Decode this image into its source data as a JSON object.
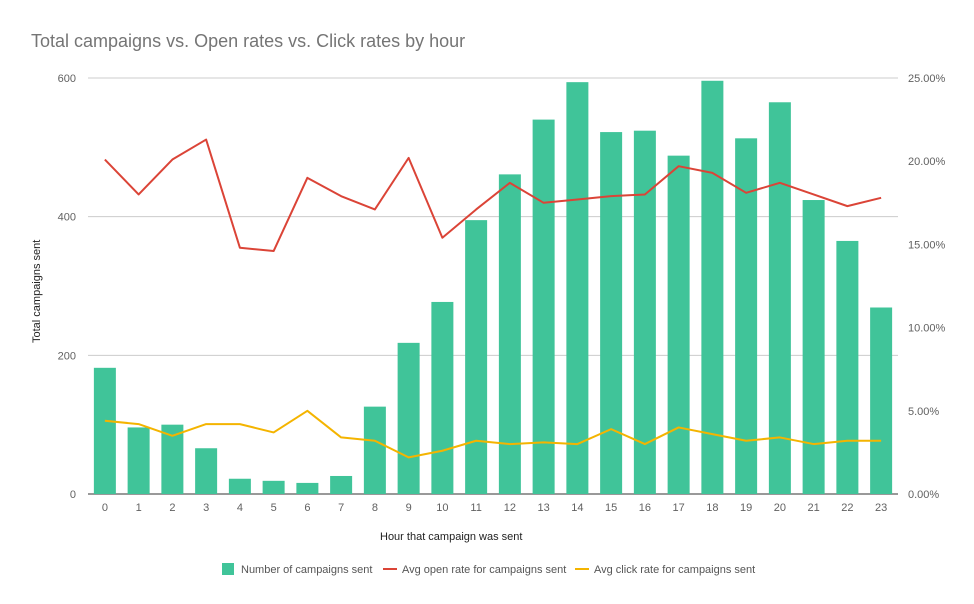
{
  "chart_data": {
    "type": "bar",
    "title": "Total campaigns vs. Open rates vs. Click rates by hour",
    "xlabel": "Hour that campaign was sent",
    "ylabel": "Total campaigns sent",
    "y_ticks": [
      "0",
      "200",
      "400",
      "600"
    ],
    "ylim": [
      0,
      600
    ],
    "y2lim": [
      0,
      25
    ],
    "y2_ticks": [
      "0.00%",
      "5.00%",
      "10.00%",
      "15.00%",
      "20.00%",
      "25.00%"
    ],
    "categories": [
      "0",
      "1",
      "2",
      "3",
      "4",
      "5",
      "6",
      "7",
      "8",
      "9",
      "10",
      "11",
      "12",
      "13",
      "14",
      "15",
      "16",
      "17",
      "18",
      "19",
      "20",
      "21",
      "22",
      "23"
    ],
    "grid": true,
    "legend_position": "bottom",
    "series": [
      {
        "name": "Number of campaigns sent",
        "type": "bar",
        "axis": "left",
        "color": "#40c499",
        "values": [
          182,
          96,
          100,
          66,
          22,
          19,
          16,
          26,
          126,
          218,
          277,
          395,
          461,
          540,
          594,
          522,
          524,
          488,
          596,
          513,
          565,
          424,
          365,
          269
        ]
      },
      {
        "name": "Avg open rate for campaigns sent",
        "type": "line",
        "axis": "right",
        "color": "#db4437",
        "values": [
          20.1,
          18.0,
          20.1,
          21.3,
          14.8,
          14.6,
          19.0,
          17.9,
          17.1,
          20.2,
          15.4,
          17.1,
          18.7,
          17.5,
          17.7,
          17.9,
          18.0,
          19.7,
          19.3,
          18.1,
          18.7,
          18.0,
          17.3,
          17.8
        ]
      },
      {
        "name": "Avg click rate for campaigns sent",
        "type": "line",
        "axis": "right",
        "color": "#f4b400",
        "values": [
          4.4,
          4.2,
          3.5,
          4.2,
          4.2,
          3.7,
          5.0,
          3.4,
          3.2,
          2.2,
          2.6,
          3.2,
          3.0,
          3.1,
          3.0,
          3.9,
          3.0,
          4.0,
          3.6,
          3.2,
          3.4,
          3.0,
          3.2,
          3.2
        ]
      }
    ]
  }
}
